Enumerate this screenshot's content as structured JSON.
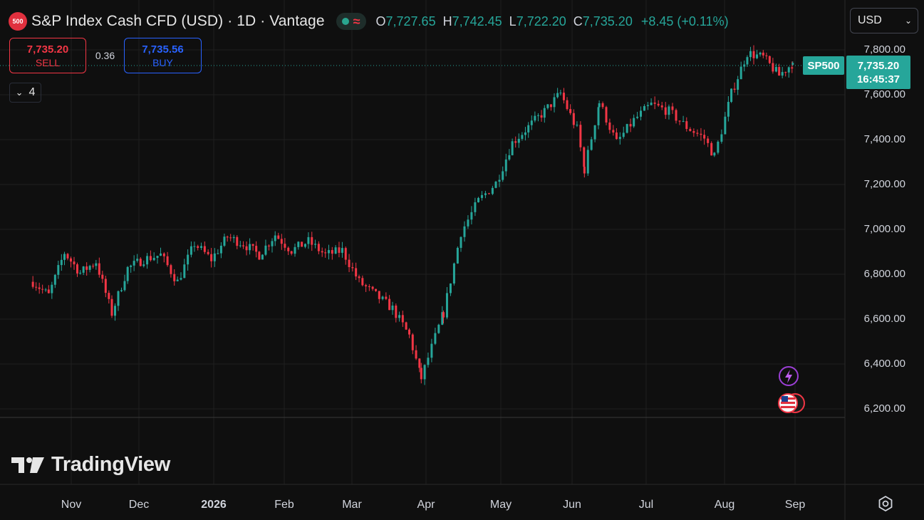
{
  "header": {
    "badge_text": "500",
    "title": "S&P Index Cash CFD (USD) · 1D · Vantage",
    "ohlc": [
      {
        "key": "O",
        "value": "7,727.65"
      },
      {
        "key": "H",
        "value": "7,742.45"
      },
      {
        "key": "L",
        "value": "7,722.20"
      },
      {
        "key": "C",
        "value": "7,735.20"
      }
    ],
    "change": "+8.45 (+0.11%)",
    "currency": "USD"
  },
  "trade": {
    "sell_price": "7,735.20",
    "sell_label": "SELL",
    "spread": "0.36",
    "buy_price": "7,735.56",
    "buy_label": "BUY"
  },
  "indicators_toggle": {
    "count": "4"
  },
  "last_price": {
    "symbol": "SP500",
    "price": "7,735.20",
    "countdown": "16:45:37"
  },
  "logo": {
    "text": "TradingView"
  },
  "colors": {
    "background": "#0f0f0f",
    "up": "#26a69a",
    "down": "#f23645",
    "grid": "#1f1f1f",
    "axis_text": "#d1d4dc",
    "buy": "#2962ff"
  },
  "chart_data": {
    "type": "candlestick",
    "x_axis_labels": [
      "Nov",
      "Dec",
      "2026",
      "Feb",
      "Mar",
      "Apr",
      "May",
      "Jun",
      "Jul",
      "Aug",
      "Sep"
    ],
    "y_axis_labels": [
      "7,800.00",
      "7,600.00",
      "7,400.00",
      "7,200.00",
      "7,000.00",
      "6,800.00",
      "6,600.00",
      "6,400.00",
      "6,200.00"
    ],
    "ylim": [
      6170,
      7830
    ],
    "grid": true,
    "series": [
      {
        "name": "SP500",
        "close_points": [
          {
            "date": "2025-10-15",
            "close": 6760
          },
          {
            "date": "2025-10-22",
            "close": 6700
          },
          {
            "date": "2025-10-29",
            "close": 6890
          },
          {
            "date": "2025-11-05",
            "close": 6800
          },
          {
            "date": "2025-11-12",
            "close": 6850
          },
          {
            "date": "2025-11-19",
            "close": 6620
          },
          {
            "date": "2025-11-26",
            "close": 6820
          },
          {
            "date": "2025-12-03",
            "close": 6860
          },
          {
            "date": "2025-12-10",
            "close": 6880
          },
          {
            "date": "2025-12-17",
            "close": 6760
          },
          {
            "date": "2025-12-24",
            "close": 6930
          },
          {
            "date": "2025-12-31",
            "close": 6860
          },
          {
            "date": "2026-01-07",
            "close": 6960
          },
          {
            "date": "2026-01-14",
            "close": 6930
          },
          {
            "date": "2026-01-21",
            "close": 6880
          },
          {
            "date": "2026-01-28",
            "close": 6970
          },
          {
            "date": "2026-02-04",
            "close": 6900
          },
          {
            "date": "2026-02-11",
            "close": 6940
          },
          {
            "date": "2026-02-18",
            "close": 6880
          },
          {
            "date": "2026-02-25",
            "close": 6900
          },
          {
            "date": "2026-03-04",
            "close": 6760
          },
          {
            "date": "2026-03-11",
            "close": 6700
          },
          {
            "date": "2026-03-18",
            "close": 6640
          },
          {
            "date": "2026-03-25",
            "close": 6520
          },
          {
            "date": "2026-03-30",
            "close": 6330
          },
          {
            "date": "2026-04-08",
            "close": 6620
          },
          {
            "date": "2026-04-15",
            "close": 6980
          },
          {
            "date": "2026-04-22",
            "close": 7120
          },
          {
            "date": "2026-04-29",
            "close": 7200
          },
          {
            "date": "2026-05-06",
            "close": 7380
          },
          {
            "date": "2026-05-13",
            "close": 7450
          },
          {
            "date": "2026-05-20",
            "close": 7520
          },
          {
            "date": "2026-05-27",
            "close": 7600
          },
          {
            "date": "2026-06-03",
            "close": 7440
          },
          {
            "date": "2026-06-06",
            "close": 7260
          },
          {
            "date": "2026-06-12",
            "close": 7560
          },
          {
            "date": "2026-06-19",
            "close": 7380
          },
          {
            "date": "2026-06-26",
            "close": 7480
          },
          {
            "date": "2026-07-03",
            "close": 7550
          },
          {
            "date": "2026-07-10",
            "close": 7520
          },
          {
            "date": "2026-07-17",
            "close": 7450
          },
          {
            "date": "2026-07-24",
            "close": 7400
          },
          {
            "date": "2026-07-28",
            "close": 7320
          },
          {
            "date": "2026-08-04",
            "close": 7600
          },
          {
            "date": "2026-08-11",
            "close": 7780
          },
          {
            "date": "2026-08-18",
            "close": 7760
          },
          {
            "date": "2026-08-25",
            "close": 7680
          },
          {
            "date": "2026-08-31",
            "close": 7735
          }
        ]
      }
    ]
  }
}
